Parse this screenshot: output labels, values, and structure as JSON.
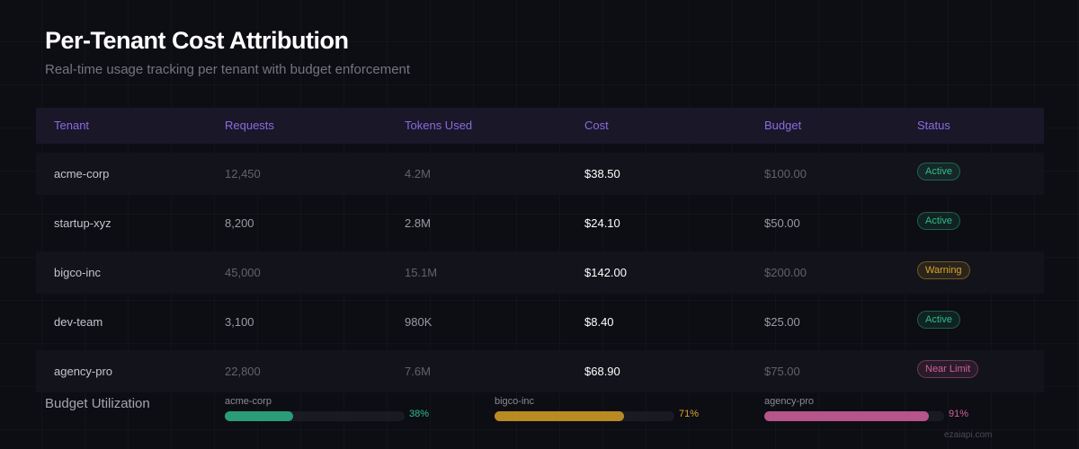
{
  "header": {
    "title": "Per-Tenant Cost Attribution",
    "subtitle": "Real-time usage tracking per tenant with budget enforcement"
  },
  "table": {
    "columns": [
      "Tenant",
      "Requests",
      "Tokens Used",
      "Cost",
      "Budget",
      "Status"
    ],
    "rows": [
      {
        "tenant": "acme-corp",
        "requests": "12,450",
        "tokens": "4.2M",
        "cost": "$38.50",
        "budget": "$100.00",
        "status": "Active",
        "status_kind": "active"
      },
      {
        "tenant": "startup-xyz",
        "requests": "8,200",
        "tokens": "2.8M",
        "cost": "$24.10",
        "budget": "$50.00",
        "status": "Active",
        "status_kind": "active"
      },
      {
        "tenant": "bigco-inc",
        "requests": "45,000",
        "tokens": "15.1M",
        "cost": "$142.00",
        "budget": "$200.00",
        "status": "Warning",
        "status_kind": "warning"
      },
      {
        "tenant": "dev-team",
        "requests": "3,100",
        "tokens": "980K",
        "cost": "$8.40",
        "budget": "$25.00",
        "status": "Active",
        "status_kind": "active"
      },
      {
        "tenant": "agency-pro",
        "requests": "22,800",
        "tokens": "7.6M",
        "cost": "$68.90",
        "budget": "$75.00",
        "status": "Near Limit",
        "status_kind": "near"
      }
    ]
  },
  "status_colors": {
    "active": "#2fbf8a",
    "warning": "#d9a52b",
    "near": "#d0609a"
  },
  "utilization": {
    "label": "Budget Utilization",
    "bars": [
      {
        "name": "acme-corp",
        "percent": 38,
        "label": "38%",
        "color": "#2a9d78"
      },
      {
        "name": "bigco-inc",
        "percent": 71,
        "label": "71%",
        "color": "#b88a22"
      },
      {
        "name": "agency-pro",
        "percent": 91,
        "label": "91%",
        "color": "#b5558a"
      }
    ]
  },
  "watermark": "ezaiapi.com"
}
